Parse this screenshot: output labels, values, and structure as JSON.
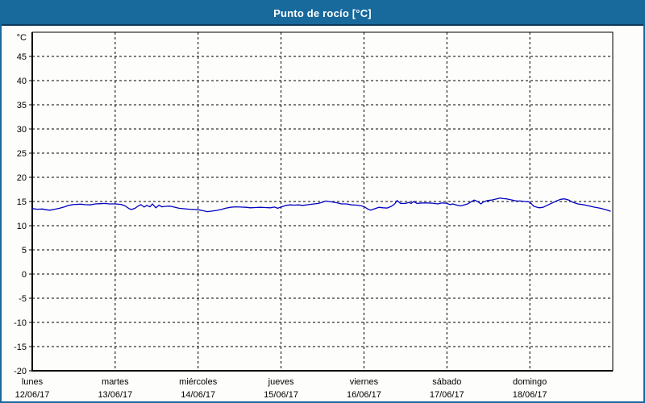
{
  "colors": {
    "title_bar": "#18699c",
    "title_bar_edge": "#0d3a5c",
    "window_border": "#18699c",
    "background": "#fdfefb",
    "grid": "#000000",
    "line": "#0000c0"
  },
  "chart_data": {
    "type": "line",
    "title": "Punto de rocío [°C]",
    "ylabel": "°C",
    "xlabel": "",
    "ylim": [
      -20,
      50
    ],
    "yticks": [
      45,
      40,
      35,
      30,
      25,
      20,
      15,
      10,
      5,
      0,
      -5,
      -10,
      -15,
      -20
    ],
    "grid": "dashed",
    "legend": "none",
    "x_unit": "days since 12/06/17 00:00",
    "days": [
      {
        "name": "lunes",
        "date": "12/06/17"
      },
      {
        "name": "martes",
        "date": "13/06/17"
      },
      {
        "name": "miércoles",
        "date": "14/06/17"
      },
      {
        "name": "jueves",
        "date": "15/06/17"
      },
      {
        "name": "viernes",
        "date": "16/06/17"
      },
      {
        "name": "sábado",
        "date": "17/06/17"
      },
      {
        "name": "domingo",
        "date": "18/06/17"
      }
    ],
    "series": [
      {
        "name": "Punto de rocío",
        "color": "#0000c0",
        "points": [
          [
            0.0,
            13.55
          ],
          [
            0.06,
            13.4
          ],
          [
            0.12,
            13.45
          ],
          [
            0.17,
            13.3
          ],
          [
            0.21,
            13.2
          ],
          [
            0.27,
            13.4
          ],
          [
            0.33,
            13.6
          ],
          [
            0.39,
            13.9
          ],
          [
            0.44,
            14.2
          ],
          [
            0.49,
            14.35
          ],
          [
            0.53,
            14.4
          ],
          [
            0.58,
            14.45
          ],
          [
            0.64,
            14.35
          ],
          [
            0.7,
            14.3
          ],
          [
            0.76,
            14.5
          ],
          [
            0.82,
            14.55
          ],
          [
            0.87,
            14.6
          ],
          [
            0.93,
            14.5
          ],
          [
            1.0,
            14.5
          ],
          [
            1.07,
            14.4
          ],
          [
            1.12,
            14.1
          ],
          [
            1.17,
            13.5
          ],
          [
            1.2,
            13.35
          ],
          [
            1.24,
            13.6
          ],
          [
            1.28,
            14.1
          ],
          [
            1.31,
            14.35
          ],
          [
            1.35,
            13.85
          ],
          [
            1.38,
            14.2
          ],
          [
            1.42,
            13.9
          ],
          [
            1.45,
            14.5
          ],
          [
            1.49,
            13.7
          ],
          [
            1.53,
            14.25
          ],
          [
            1.56,
            13.9
          ],
          [
            1.61,
            14.0
          ],
          [
            1.66,
            14.05
          ],
          [
            1.71,
            13.85
          ],
          [
            1.77,
            13.6
          ],
          [
            1.83,
            13.5
          ],
          [
            1.9,
            13.4
          ],
          [
            1.95,
            13.35
          ],
          [
            2.0,
            13.3
          ],
          [
            2.06,
            13.1
          ],
          [
            2.11,
            12.9
          ],
          [
            2.16,
            13.0
          ],
          [
            2.22,
            13.15
          ],
          [
            2.28,
            13.35
          ],
          [
            2.33,
            13.6
          ],
          [
            2.39,
            13.8
          ],
          [
            2.45,
            13.9
          ],
          [
            2.51,
            13.85
          ],
          [
            2.58,
            13.8
          ],
          [
            2.63,
            13.7
          ],
          [
            2.69,
            13.75
          ],
          [
            2.75,
            13.8
          ],
          [
            2.81,
            13.75
          ],
          [
            2.87,
            13.7
          ],
          [
            2.92,
            13.85
          ],
          [
            2.96,
            13.6
          ],
          [
            2.99,
            13.8
          ],
          [
            3.01,
            13.9
          ],
          [
            3.06,
            14.2
          ],
          [
            3.11,
            14.3
          ],
          [
            3.16,
            14.25
          ],
          [
            3.21,
            14.3
          ],
          [
            3.26,
            14.2
          ],
          [
            3.31,
            14.3
          ],
          [
            3.35,
            14.4
          ],
          [
            3.4,
            14.5
          ],
          [
            3.45,
            14.6
          ],
          [
            3.5,
            14.85
          ],
          [
            3.54,
            15.1
          ],
          [
            3.58,
            15.0
          ],
          [
            3.62,
            14.9
          ],
          [
            3.67,
            14.75
          ],
          [
            3.73,
            14.5
          ],
          [
            3.79,
            14.5
          ],
          [
            3.85,
            14.3
          ],
          [
            3.91,
            14.25
          ],
          [
            3.97,
            14.1
          ],
          [
            4.01,
            13.85
          ],
          [
            4.04,
            13.5
          ],
          [
            4.08,
            13.2
          ],
          [
            4.13,
            13.5
          ],
          [
            4.18,
            13.8
          ],
          [
            4.23,
            13.7
          ],
          [
            4.28,
            13.65
          ],
          [
            4.33,
            14.0
          ],
          [
            4.37,
            14.5
          ],
          [
            4.4,
            15.2
          ],
          [
            4.44,
            14.6
          ],
          [
            4.5,
            14.6
          ],
          [
            4.54,
            14.8
          ],
          [
            4.57,
            14.6
          ],
          [
            4.6,
            15.0
          ],
          [
            4.64,
            14.6
          ],
          [
            4.7,
            14.7
          ],
          [
            4.76,
            14.7
          ],
          [
            4.83,
            14.65
          ],
          [
            4.89,
            14.5
          ],
          [
            4.94,
            14.7
          ],
          [
            4.99,
            14.65
          ],
          [
            5.04,
            14.35
          ],
          [
            5.07,
            14.5
          ],
          [
            5.13,
            14.2
          ],
          [
            5.17,
            14.1
          ],
          [
            5.21,
            14.3
          ],
          [
            5.25,
            14.5
          ],
          [
            5.29,
            14.9
          ],
          [
            5.33,
            15.3
          ],
          [
            5.37,
            15.0
          ],
          [
            5.41,
            14.5
          ],
          [
            5.44,
            14.9
          ],
          [
            5.49,
            15.2
          ],
          [
            5.54,
            15.3
          ],
          [
            5.59,
            15.5
          ],
          [
            5.64,
            15.7
          ],
          [
            5.68,
            15.6
          ],
          [
            5.72,
            15.55
          ],
          [
            5.76,
            15.4
          ],
          [
            5.79,
            15.3
          ],
          [
            5.84,
            15.1
          ],
          [
            5.89,
            15.1
          ],
          [
            5.94,
            15.0
          ],
          [
            5.98,
            14.95
          ],
          [
            6.0,
            14.85
          ],
          [
            6.05,
            14.0
          ],
          [
            6.11,
            13.7
          ],
          [
            6.16,
            13.8
          ],
          [
            6.22,
            14.3
          ],
          [
            6.27,
            14.7
          ],
          [
            6.32,
            15.1
          ],
          [
            6.37,
            15.45
          ],
          [
            6.42,
            15.55
          ],
          [
            6.47,
            15.3
          ],
          [
            6.51,
            14.9
          ],
          [
            6.58,
            14.5
          ],
          [
            6.66,
            14.3
          ],
          [
            6.76,
            13.9
          ],
          [
            6.85,
            13.6
          ],
          [
            6.92,
            13.3
          ],
          [
            6.97,
            13.0
          ]
        ]
      }
    ]
  }
}
